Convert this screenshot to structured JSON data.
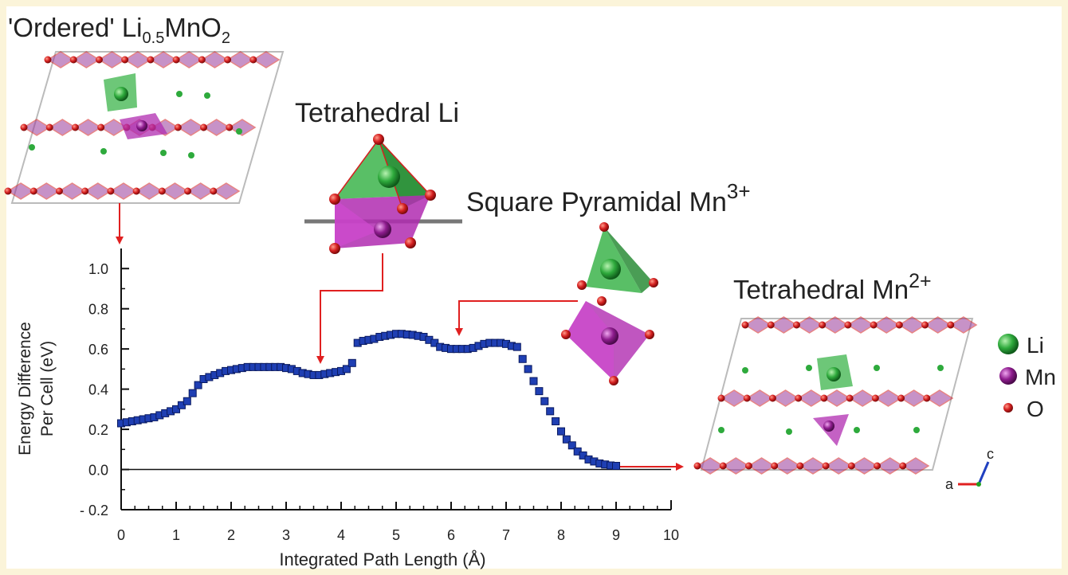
{
  "labels": {
    "ordered_prefix": "'Ordered' Li",
    "ordered_sub1": "0.5",
    "ordered_mid": "MnO",
    "ordered_sub2": "2",
    "tetra_li": "Tetrahedral Li",
    "square_pyr": "Square Pyramidal Mn",
    "square_pyr_sup": "3+",
    "tetra_mn": "Tetrahedral Mn",
    "tetra_mn_sup": "2+"
  },
  "legend": [
    {
      "label": "Li",
      "color": "#2eaa3c"
    },
    {
      "label": "Mn",
      "color": "#8e1c8e"
    },
    {
      "label": "O",
      "color": "#d42020"
    }
  ],
  "axes_glyph": {
    "a": "a",
    "c": "c"
  },
  "chart_data": {
    "type": "scatter",
    "xlabel": "Integrated Path Length (Å)",
    "ylabel_line1": "Energy Difference",
    "ylabel_line2": "Per Cell (eV)",
    "xlim": [
      0,
      10
    ],
    "ylim": [
      -0.2,
      1.1
    ],
    "x_ticks": [
      "0",
      "1",
      "2",
      "3",
      "4",
      "5",
      "6",
      "7",
      "8",
      "9",
      "10"
    ],
    "y_ticks": [
      {
        "v": -0.2,
        "t": "- 0.2"
      },
      {
        "v": 0.0,
        "t": "0.0"
      },
      {
        "v": 0.2,
        "t": "0.2"
      },
      {
        "v": 0.4,
        "t": "0.4"
      },
      {
        "v": 0.6,
        "t": "0.6"
      },
      {
        "v": 0.8,
        "t": "0.8"
      },
      {
        "v": 1.0,
        "t": "1.0"
      }
    ],
    "reference_line": 0.0,
    "marker_color": "#1f3fb3",
    "points": [
      [
        0.0,
        0.23
      ],
      [
        0.1,
        0.235
      ],
      [
        0.2,
        0.24
      ],
      [
        0.3,
        0.245
      ],
      [
        0.4,
        0.25
      ],
      [
        0.5,
        0.255
      ],
      [
        0.6,
        0.26
      ],
      [
        0.7,
        0.27
      ],
      [
        0.8,
        0.28
      ],
      [
        0.9,
        0.29
      ],
      [
        1.0,
        0.3
      ],
      [
        1.1,
        0.32
      ],
      [
        1.2,
        0.34
      ],
      [
        1.3,
        0.38
      ],
      [
        1.4,
        0.42
      ],
      [
        1.5,
        0.45
      ],
      [
        1.6,
        0.46
      ],
      [
        1.7,
        0.47
      ],
      [
        1.8,
        0.48
      ],
      [
        1.9,
        0.49
      ],
      [
        2.0,
        0.495
      ],
      [
        2.1,
        0.5
      ],
      [
        2.2,
        0.505
      ],
      [
        2.3,
        0.51
      ],
      [
        2.4,
        0.51
      ],
      [
        2.5,
        0.51
      ],
      [
        2.6,
        0.51
      ],
      [
        2.7,
        0.51
      ],
      [
        2.8,
        0.51
      ],
      [
        2.9,
        0.51
      ],
      [
        3.0,
        0.505
      ],
      [
        3.1,
        0.5
      ],
      [
        3.2,
        0.49
      ],
      [
        3.3,
        0.48
      ],
      [
        3.4,
        0.475
      ],
      [
        3.5,
        0.47
      ],
      [
        3.6,
        0.47
      ],
      [
        3.7,
        0.475
      ],
      [
        3.8,
        0.48
      ],
      [
        3.9,
        0.485
      ],
      [
        4.0,
        0.49
      ],
      [
        4.1,
        0.5
      ],
      [
        4.2,
        0.53
      ],
      [
        4.3,
        0.63
      ],
      [
        4.4,
        0.64
      ],
      [
        4.5,
        0.645
      ],
      [
        4.6,
        0.65
      ],
      [
        4.7,
        0.66
      ],
      [
        4.8,
        0.665
      ],
      [
        4.9,
        0.67
      ],
      [
        5.0,
        0.675
      ],
      [
        5.1,
        0.675
      ],
      [
        5.2,
        0.672
      ],
      [
        5.3,
        0.67
      ],
      [
        5.4,
        0.665
      ],
      [
        5.5,
        0.66
      ],
      [
        5.6,
        0.645
      ],
      [
        5.7,
        0.63
      ],
      [
        5.8,
        0.61
      ],
      [
        5.9,
        0.605
      ],
      [
        6.0,
        0.6
      ],
      [
        6.1,
        0.6
      ],
      [
        6.2,
        0.6
      ],
      [
        6.3,
        0.6
      ],
      [
        6.4,
        0.605
      ],
      [
        6.5,
        0.615
      ],
      [
        6.6,
        0.625
      ],
      [
        6.7,
        0.63
      ],
      [
        6.8,
        0.63
      ],
      [
        6.9,
        0.63
      ],
      [
        7.0,
        0.625
      ],
      [
        7.1,
        0.615
      ],
      [
        7.2,
        0.61
      ],
      [
        7.3,
        0.55
      ],
      [
        7.4,
        0.5
      ],
      [
        7.5,
        0.44
      ],
      [
        7.6,
        0.39
      ],
      [
        7.7,
        0.34
      ],
      [
        7.8,
        0.29
      ],
      [
        7.9,
        0.24
      ],
      [
        8.0,
        0.19
      ],
      [
        8.1,
        0.15
      ],
      [
        8.2,
        0.12
      ],
      [
        8.3,
        0.09
      ],
      [
        8.4,
        0.07
      ],
      [
        8.5,
        0.05
      ],
      [
        8.6,
        0.04
      ],
      [
        8.7,
        0.03
      ],
      [
        8.8,
        0.025
      ],
      [
        8.9,
        0.02
      ],
      [
        9.0,
        0.018
      ]
    ]
  }
}
